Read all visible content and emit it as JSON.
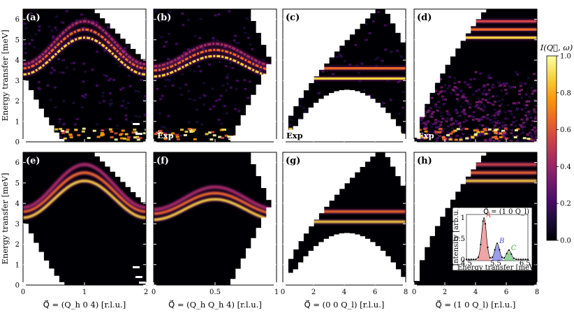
{
  "figure": {
    "ylabel": "Energy transfer [meV]",
    "colorbar_label": "I(Q⃗, ω)",
    "exp_tag": "Exp",
    "colormap": [
      "#000004",
      "#1c0c3b",
      "#4b0c6b",
      "#781c6d",
      "#a52c60",
      "#cf4446",
      "#ed6925",
      "#fb9b06",
      "#f7d13d",
      "#fcffa4"
    ],
    "mask_color": "#ffffff",
    "colorbar_ticks": [
      "0.0",
      "0.2",
      "0.4",
      "0.6",
      "0.8",
      "1.0"
    ]
  },
  "chart_data": [
    {
      "id": "a",
      "label": "(a)",
      "type": "heatmap",
      "source": "experiment",
      "exp_tag": true,
      "xlabel": "Q⃗ = (Q_h 0 4) [r.l.u.]",
      "ylabel": "Energy transfer [meV]",
      "xlim": [
        0,
        2
      ],
      "ylim": [
        0,
        6.5
      ],
      "xticks": [
        "0",
        "1",
        "2"
      ],
      "yticks": [
        "0",
        "1",
        "2",
        "3",
        "4",
        "5",
        "6"
      ],
      "dispersion": "cosine",
      "branches_meV": [
        [
          3.3,
          5.1
        ],
        [
          3.6,
          5.5
        ],
        [
          3.8,
          5.9
        ]
      ],
      "bandwidth_peak_at_x": 1
    },
    {
      "id": "b",
      "label": "(b)",
      "type": "heatmap",
      "source": "experiment",
      "exp_tag": true,
      "xlabel": "Q⃗ = (Q_h Q_h 4) [r.l.u.]",
      "xlim": [
        0,
        1
      ],
      "ylim": [
        0,
        6.5
      ],
      "xticks": [
        "0",
        "0.5",
        "1"
      ],
      "dispersion": "cosine",
      "branches_meV": [
        [
          3.2,
          4.2
        ],
        [
          3.5,
          4.5
        ],
        [
          3.7,
          4.8
        ]
      ],
      "bandwidth_peak_at_x": 0.5
    },
    {
      "id": "c",
      "label": "(c)",
      "type": "heatmap",
      "source": "experiment",
      "exp_tag": true,
      "xlabel": "Q⃗ = (0 0 Q_l) [r.l.u.]",
      "xlim": [
        0,
        8
      ],
      "ylim": [
        0,
        6.5
      ],
      "xticks": [
        "0",
        "2",
        "4",
        "6",
        "8"
      ],
      "dispersion": "flat",
      "branches_meV": [
        3.1,
        3.6
      ]
    },
    {
      "id": "d",
      "label": "(d)",
      "type": "heatmap",
      "source": "experiment",
      "exp_tag": true,
      "xlabel": "Q⃗ = (1 0 Q_l) [r.l.u.]",
      "xlim": [
        0,
        8
      ],
      "ylim": [
        0,
        6.5
      ],
      "xticks": [
        "0",
        "2",
        "4",
        "6",
        "8"
      ],
      "dispersion": "flat",
      "branches_meV": [
        5.1,
        5.5,
        5.9
      ]
    },
    {
      "id": "e",
      "label": "(e)",
      "type": "heatmap",
      "source": "calculation",
      "exp_tag": false,
      "xlabel": "Q⃗ = (Q_h 0 4) [r.l.u.]",
      "xlim": [
        0,
        2
      ],
      "ylim": [
        0,
        6.5
      ],
      "xticks": [
        "0",
        "1",
        "2"
      ],
      "dispersion": "cosine",
      "branches_meV": [
        [
          3.3,
          5.1
        ],
        [
          3.6,
          5.5
        ],
        [
          3.8,
          5.9
        ]
      ],
      "bandwidth_peak_at_x": 1
    },
    {
      "id": "f",
      "label": "(f)",
      "type": "heatmap",
      "source": "calculation",
      "exp_tag": false,
      "xlabel": "Q⃗ = (Q_h Q_h 4) [r.l.u.]",
      "xlim": [
        0,
        1
      ],
      "ylim": [
        0,
        6.5
      ],
      "xticks": [
        "0",
        "0.5",
        "1"
      ],
      "dispersion": "cosine",
      "branches_meV": [
        [
          3.2,
          4.2
        ],
        [
          3.5,
          4.5
        ],
        [
          3.7,
          4.8
        ]
      ],
      "bandwidth_peak_at_x": 0.5
    },
    {
      "id": "g",
      "label": "(g)",
      "type": "heatmap",
      "source": "calculation",
      "exp_tag": false,
      "xlabel": "Q⃗ = (0 0 Q_l) [r.l.u.]",
      "xlim": [
        0,
        8
      ],
      "ylim": [
        0,
        6.5
      ],
      "xticks": [
        "0",
        "2",
        "4",
        "6",
        "8"
      ],
      "dispersion": "flat",
      "branches_meV": [
        3.1,
        3.6
      ]
    },
    {
      "id": "h",
      "label": "(h)",
      "type": "heatmap",
      "source": "calculation",
      "exp_tag": false,
      "xlabel": "Q⃗ = (1 0 Q_l) [r.l.u.]",
      "xlim": [
        0,
        8
      ],
      "ylim": [
        0,
        6.5
      ],
      "xticks": [
        "0",
        "2",
        "4",
        "6",
        "8"
      ],
      "dispersion": "flat",
      "branches_meV": [
        5.1,
        5.5,
        5.9
      ]
    },
    {
      "id": "inset",
      "type": "line",
      "title": "Q⃗ = (1 0 Q_l)",
      "xlabel": "Energy transfer [meV]",
      "ylabel": "Intensity [arb.u.]",
      "xlim": [
        4.5,
        6.6
      ],
      "ylim": [
        0,
        1.1
      ],
      "xticks": [
        "4.5",
        "5.5",
        "6.5"
      ],
      "yticks": [
        "0",
        "0.5",
        "1"
      ],
      "peaks": [
        {
          "name": "A",
          "center": 5.1,
          "height": 1.0,
          "color": "#e25b5b"
        },
        {
          "name": "B",
          "center": 5.55,
          "height": 0.38,
          "color": "#4a4ad8"
        },
        {
          "name": "C",
          "center": 5.95,
          "height": 0.22,
          "color": "#3cb043"
        }
      ]
    }
  ]
}
